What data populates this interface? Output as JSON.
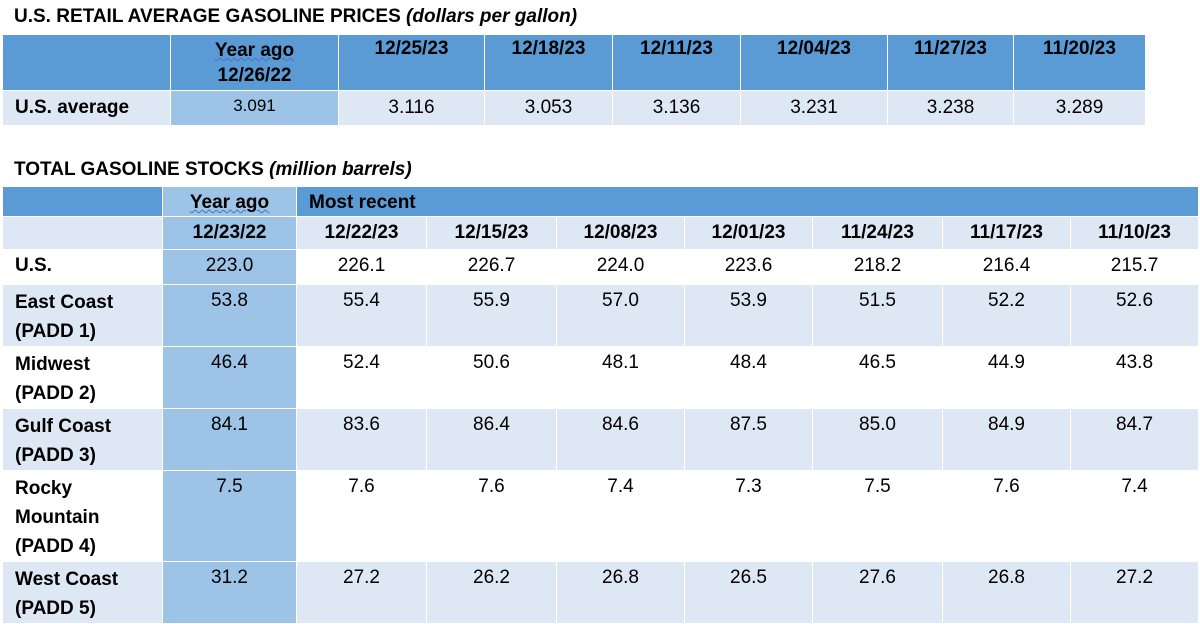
{
  "prices": {
    "title": "U.S. RETAIL AVERAGE GASOLINE PRICES",
    "unit": "(dollars per gallon)",
    "year_ago_label_1": "Year ago",
    "year_ago_label_2": "12/26/22",
    "dates": [
      "12/25/23",
      "12/18/23",
      "12/11/23",
      "12/04/23",
      "11/27/23",
      "11/20/23"
    ],
    "row_label": "U.S. average",
    "year_ago_value": "3.091",
    "values": [
      "3.116",
      "3.053",
      "3.136",
      "3.231",
      "3.238",
      "3.289"
    ]
  },
  "stocks": {
    "title": "TOTAL GASOLINE STOCKS",
    "unit": "(million barrels)",
    "year_ago_label": "Year ago",
    "most_recent_label": "Most recent",
    "year_ago_date": "12/23/22",
    "dates": [
      "12/22/23",
      "12/15/23",
      "12/08/23",
      "12/01/23",
      "11/24/23",
      "11/17/23",
      "11/10/23"
    ],
    "rows": [
      {
        "label_lines": [
          "U.S."
        ],
        "year_ago": "223.0",
        "values": [
          "226.1",
          "226.7",
          "224.0",
          "223.6",
          "218.2",
          "216.4",
          "215.7"
        ]
      },
      {
        "label_lines": [
          "East Coast",
          "(PADD 1)"
        ],
        "year_ago": "53.8",
        "values": [
          "55.4",
          "55.9",
          "57.0",
          "53.9",
          "51.5",
          "52.2",
          "52.6"
        ]
      },
      {
        "label_lines": [
          "Midwest",
          "(PADD 2)"
        ],
        "year_ago": "46.4",
        "values": [
          "52.4",
          "50.6",
          "48.1",
          "48.4",
          "46.5",
          "44.9",
          "43.8"
        ]
      },
      {
        "label_lines": [
          "Gulf Coast",
          "(PADD 3)"
        ],
        "year_ago": "84.1",
        "values": [
          "83.6",
          "86.4",
          "84.6",
          "87.5",
          "85.0",
          "84.9",
          "84.7"
        ]
      },
      {
        "label_lines": [
          "Rocky",
          "Mountain",
          "(PADD 4)"
        ],
        "year_ago": "7.5",
        "values": [
          "7.6",
          "7.6",
          "7.4",
          "7.3",
          "7.5",
          "7.6",
          "7.4"
        ]
      },
      {
        "label_lines": [
          "West Coast",
          "(PADD 5)"
        ],
        "year_ago": "31.2",
        "values": [
          "27.2",
          "26.2",
          "26.8",
          "26.5",
          "27.6",
          "26.8",
          "27.2"
        ]
      }
    ]
  },
  "colors": {
    "header_blue": "#5b9bd5",
    "highlight_blue": "#9dc3e6",
    "band_blue": "#dde8f4"
  }
}
